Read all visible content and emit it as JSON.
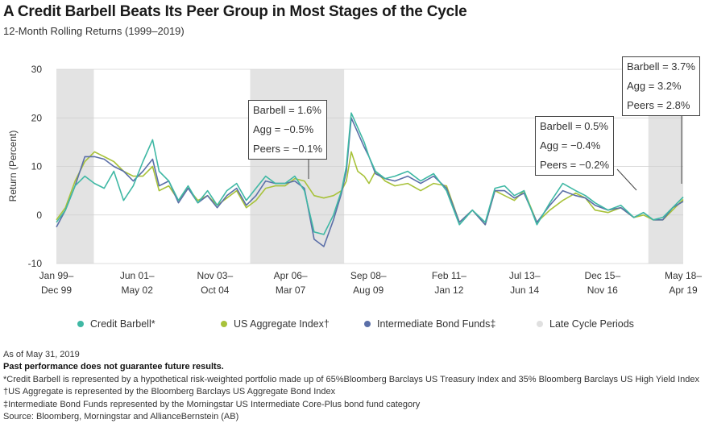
{
  "header": {
    "title": "A Credit Barbell Beats Its Peer Group in Most Stages of the Cycle",
    "subtitle": "12-Month Rolling Returns (1999–2019)"
  },
  "legend": {
    "items": [
      {
        "label": "Credit Barbell*",
        "color": "#3fb8a4"
      },
      {
        "label": "US Aggregate Index†",
        "color": "#a8c23a"
      },
      {
        "label": "Intermediate Bond Funds‡",
        "color": "#5b6fa8"
      },
      {
        "label": "Late Cycle Periods",
        "color": "#e0e0e0"
      }
    ]
  },
  "annotations": [
    {
      "lines": [
        "Barbell = 1.6%",
        "Agg = −0.5%",
        "Peers = −0.1%"
      ]
    },
    {
      "lines": [
        "Barbell = 0.5%",
        "Agg = −0.4%",
        "Peers = −0.2%"
      ]
    },
    {
      "lines": [
        "Barbell = 3.7%",
        "Agg = 3.2%",
        "Peers = 2.8%"
      ]
    }
  ],
  "notes": {
    "as_of": "As of May 31, 2019",
    "disclaimer": "Past performance does not guarantee future results.",
    "barbell_note": "*Credit Barbell is represented by a hypothetical risk-weighted portfolio made up of 65%Bloomberg Barclays US Treasury Index and 35% Bloomberg Barclays US High Yield Index",
    "agg_note": "†US Aggregate is represented by the Bloomberg Barclays US Aggregate Bond Index",
    "funds_note": "‡Intermediate Bond Funds represented by the Morningstar US Intermediate Core-Plus bond fund category",
    "source": "Source: Bloomberg, Morningstar and AllianceBernstein (AB)"
  },
  "chart_data": {
    "type": "line",
    "ylabel": "Return (Percent)",
    "ylim": [
      -10,
      30
    ],
    "yticks": [
      -10,
      0,
      10,
      20,
      30
    ],
    "x_range": [
      1999.92,
      2019.33
    ],
    "x_tick_labels": [
      {
        "x": 1999.92,
        "top": "Jan 99–",
        "bottom": "Dec 99"
      },
      {
        "x": 2002.42,
        "top": "Jun 01–",
        "bottom": "May 02"
      },
      {
        "x": 2004.83,
        "top": "Nov 03–",
        "bottom": "Oct 04"
      },
      {
        "x": 2007.17,
        "top": "Apr 06–",
        "bottom": "Mar 07"
      },
      {
        "x": 2009.58,
        "top": "Sep 08–",
        "bottom": "Aug 09"
      },
      {
        "x": 2012.08,
        "top": "Feb 11–",
        "bottom": "Jan 12"
      },
      {
        "x": 2014.42,
        "top": "Jul 13–",
        "bottom": "Jun 14"
      },
      {
        "x": 2016.83,
        "top": "Dec 15–",
        "bottom": "Nov 16"
      },
      {
        "x": 2019.33,
        "top": "May 18–",
        "bottom": "Apr 19"
      }
    ],
    "late_cycle_periods": [
      [
        1999.92,
        2001.08
      ],
      [
        2005.92,
        2008.83
      ],
      [
        2018.25,
        2019.33
      ]
    ],
    "grid": "horizontal",
    "series": [
      {
        "name": "Credit Barbell*",
        "color": "#3fb8a4",
        "x": [
          1999.92,
          2000.2,
          2000.5,
          2000.8,
          2001.1,
          2001.4,
          2001.7,
          2002.0,
          2002.3,
          2002.6,
          2002.9,
          2003.1,
          2003.4,
          2003.7,
          2004.0,
          2004.3,
          2004.6,
          2004.9,
          2005.2,
          2005.5,
          2005.8,
          2006.1,
          2006.4,
          2006.7,
          2007.0,
          2007.3,
          2007.6,
          2007.9,
          2008.2,
          2008.5,
          2008.75,
          2008.9,
          2009.05,
          2009.25,
          2009.45,
          2009.6,
          2009.8,
          2010.1,
          2010.4,
          2010.8,
          2011.2,
          2011.6,
          2012.0,
          2012.4,
          2012.8,
          2013.2,
          2013.5,
          2013.8,
          2014.1,
          2014.4,
          2014.8,
          2015.2,
          2015.6,
          2016.0,
          2016.3,
          2016.6,
          2017.0,
          2017.4,
          2017.8,
          2018.1,
          2018.4,
          2018.7,
          2019.0,
          2019.33
        ],
        "y": [
          -1.5,
          1.0,
          6.0,
          8.0,
          6.5,
          5.5,
          9.0,
          3.0,
          6.0,
          11.0,
          15.5,
          9.0,
          7.0,
          3.0,
          6.0,
          2.5,
          5.0,
          2.0,
          5.0,
          6.5,
          3.0,
          5.5,
          8.0,
          6.5,
          6.5,
          8.0,
          5.0,
          -3.5,
          -4.0,
          0.0,
          5.0,
          10.0,
          21.0,
          18.0,
          15.0,
          12.0,
          9.0,
          7.5,
          8.0,
          9.0,
          7.0,
          8.5,
          5.0,
          -2.0,
          1.0,
          -1.5,
          5.5,
          6.0,
          4.0,
          5.0,
          -2.0,
          2.5,
          6.5,
          5.0,
          4.0,
          2.5,
          1.0,
          2.0,
          -0.5,
          0.5,
          -1.0,
          -0.5,
          1.5,
          3.7
        ]
      },
      {
        "name": "US Aggregate Index†",
        "color": "#a8c23a",
        "x": [
          1999.92,
          2000.2,
          2000.5,
          2000.8,
          2001.1,
          2001.4,
          2001.7,
          2002.0,
          2002.3,
          2002.6,
          2002.9,
          2003.1,
          2003.4,
          2003.7,
          2004.0,
          2004.3,
          2004.6,
          2004.9,
          2005.2,
          2005.5,
          2005.8,
          2006.1,
          2006.4,
          2006.7,
          2007.0,
          2007.3,
          2007.6,
          2007.9,
          2008.2,
          2008.5,
          2008.75,
          2008.9,
          2009.05,
          2009.25,
          2009.45,
          2009.6,
          2009.8,
          2010.1,
          2010.4,
          2010.8,
          2011.2,
          2011.6,
          2012.0,
          2012.4,
          2012.8,
          2013.2,
          2013.5,
          2013.8,
          2014.1,
          2014.4,
          2014.8,
          2015.2,
          2015.6,
          2016.0,
          2016.3,
          2016.6,
          2017.0,
          2017.4,
          2017.8,
          2018.1,
          2018.4,
          2018.7,
          2019.0,
          2019.33
        ],
        "y": [
          -1.0,
          1.5,
          7.0,
          11.0,
          13.0,
          12.0,
          11.0,
          9.0,
          8.0,
          8.0,
          10.0,
          5.0,
          6.0,
          3.0,
          5.5,
          3.0,
          4.0,
          2.0,
          3.5,
          5.0,
          1.5,
          3.0,
          5.5,
          6.0,
          6.0,
          7.5,
          7.0,
          4.0,
          3.5,
          4.0,
          5.0,
          7.0,
          13.0,
          9.0,
          8.0,
          6.5,
          9.0,
          7.0,
          6.0,
          6.5,
          5.0,
          6.5,
          6.0,
          -1.5,
          1.0,
          -2.0,
          5.0,
          4.0,
          3.0,
          5.0,
          -1.5,
          1.0,
          3.0,
          4.5,
          3.5,
          1.0,
          0.5,
          1.5,
          -0.5,
          0.0,
          -1.0,
          -1.0,
          1.0,
          3.2
        ]
      },
      {
        "name": "Intermediate Bond Funds‡",
        "color": "#5b6fa8",
        "x": [
          1999.92,
          2000.2,
          2000.5,
          2000.8,
          2001.1,
          2001.4,
          2001.7,
          2002.0,
          2002.3,
          2002.6,
          2002.9,
          2003.1,
          2003.4,
          2003.7,
          2004.0,
          2004.3,
          2004.6,
          2004.9,
          2005.2,
          2005.5,
          2005.8,
          2006.1,
          2006.4,
          2006.7,
          2007.0,
          2007.3,
          2007.6,
          2007.9,
          2008.2,
          2008.5,
          2008.75,
          2008.9,
          2009.05,
          2009.25,
          2009.45,
          2009.6,
          2009.8,
          2010.1,
          2010.4,
          2010.8,
          2011.2,
          2011.6,
          2012.0,
          2012.4,
          2012.8,
          2013.2,
          2013.5,
          2013.8,
          2014.1,
          2014.4,
          2014.8,
          2015.2,
          2015.6,
          2016.0,
          2016.3,
          2016.6,
          2017.0,
          2017.4,
          2017.8,
          2018.1,
          2018.4,
          2018.7,
          2019.0,
          2019.33
        ],
        "y": [
          -2.5,
          1.0,
          6.0,
          12.0,
          12.0,
          11.5,
          10.0,
          9.0,
          7.0,
          9.0,
          11.5,
          6.0,
          7.0,
          2.5,
          5.5,
          2.5,
          4.0,
          1.5,
          4.0,
          5.5,
          2.0,
          4.0,
          7.0,
          6.5,
          6.5,
          7.0,
          5.5,
          -5.0,
          -6.5,
          -1.0,
          4.5,
          9.0,
          20.0,
          17.0,
          14.0,
          12.0,
          8.5,
          7.5,
          7.0,
          8.0,
          6.5,
          8.0,
          5.5,
          -1.5,
          1.0,
          -2.0,
          5.0,
          5.0,
          3.5,
          4.5,
          -1.5,
          2.0,
          5.0,
          4.0,
          3.5,
          2.0,
          1.0,
          1.5,
          -0.5,
          0.5,
          -1.0,
          -1.0,
          1.5,
          2.8
        ]
      }
    ]
  }
}
